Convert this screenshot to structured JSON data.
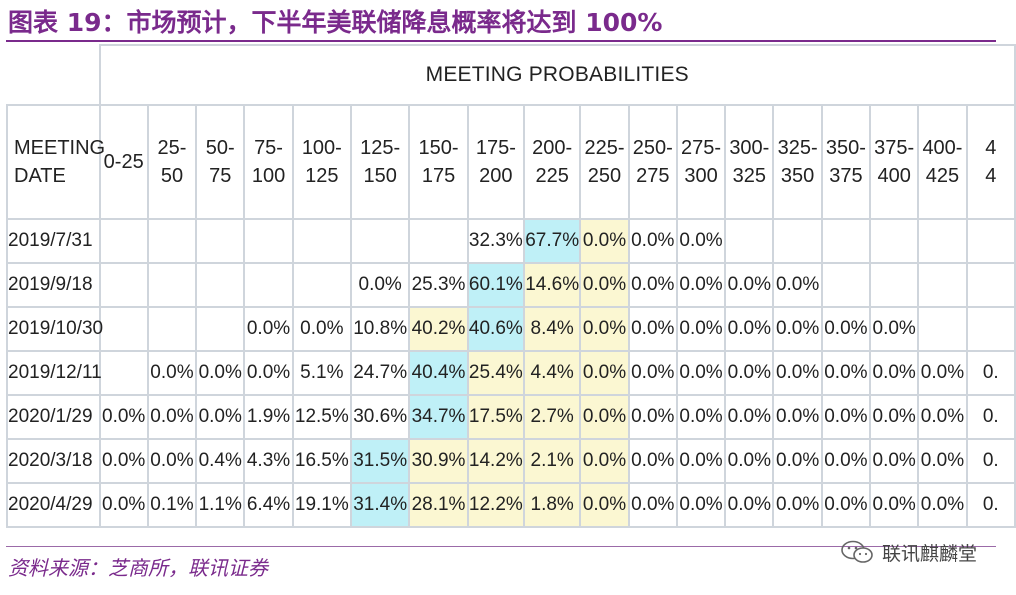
{
  "figure": {
    "title": "图表 19：市场预计，下半年美联储降息概率将达到 100%",
    "source": "资料来源：芝商所，联讯证券",
    "watermark": "联讯麒麟堂"
  },
  "table": {
    "group_header": "MEETING PROBABILITIES",
    "date_header_line1": "MEETING",
    "date_header_line2": "DATE",
    "columns": [
      {
        "l1": "0-25",
        "l2": ""
      },
      {
        "l1": "25-",
        "l2": "50"
      },
      {
        "l1": "50-",
        "l2": "75"
      },
      {
        "l1": "75-",
        "l2": "100"
      },
      {
        "l1": "100-",
        "l2": "125"
      },
      {
        "l1": "125-",
        "l2": "150"
      },
      {
        "l1": "150-",
        "l2": "175"
      },
      {
        "l1": "175-",
        "l2": "200"
      },
      {
        "l1": "200-",
        "l2": "225"
      },
      {
        "l1": "225-",
        "l2": "250"
      },
      {
        "l1": "250-",
        "l2": "275"
      },
      {
        "l1": "275-",
        "l2": "300"
      },
      {
        "l1": "300-",
        "l2": "325"
      },
      {
        "l1": "325-",
        "l2": "350"
      },
      {
        "l1": "350-",
        "l2": "375"
      },
      {
        "l1": "375-",
        "l2": "400"
      },
      {
        "l1": "400-",
        "l2": "425"
      },
      {
        "l1": "4",
        "l2": "4"
      }
    ],
    "rows": [
      {
        "date": "2019/7/31",
        "values": [
          "",
          "",
          "",
          "",
          "",
          "",
          "",
          "32.3%",
          "67.7%",
          "0.0%",
          "0.0%",
          "0.0%",
          "",
          "",
          "",
          "",
          "",
          ""
        ],
        "highlight": [
          "",
          "",
          "",
          "",
          "",
          "",
          "",
          "",
          "hi",
          "mid",
          "",
          "",
          "",
          "",
          "",
          "",
          "",
          ""
        ]
      },
      {
        "date": "2019/9/18",
        "values": [
          "",
          "",
          "",
          "",
          "",
          "0.0%",
          "25.3%",
          "60.1%",
          "14.6%",
          "0.0%",
          "0.0%",
          "0.0%",
          "0.0%",
          "0.0%",
          "",
          "",
          "",
          ""
        ],
        "highlight": [
          "",
          "",
          "",
          "",
          "",
          "",
          "",
          "hi",
          "mid",
          "mid",
          "",
          "",
          "",
          "",
          "",
          "",
          "",
          ""
        ]
      },
      {
        "date": "2019/10/30",
        "values": [
          "",
          "",
          "",
          "0.0%",
          "0.0%",
          "10.8%",
          "40.2%",
          "40.6%",
          "8.4%",
          "0.0%",
          "0.0%",
          "0.0%",
          "0.0%",
          "0.0%",
          "0.0%",
          "0.0%",
          "",
          ""
        ],
        "highlight": [
          "",
          "",
          "",
          "",
          "",
          "",
          "mid",
          "hi",
          "mid",
          "mid",
          "",
          "",
          "",
          "",
          "",
          "",
          "",
          ""
        ]
      },
      {
        "date": "2019/12/11",
        "values": [
          "",
          "0.0%",
          "0.0%",
          "0.0%",
          "5.1%",
          "24.7%",
          "40.4%",
          "25.4%",
          "4.4%",
          "0.0%",
          "0.0%",
          "0.0%",
          "0.0%",
          "0.0%",
          "0.0%",
          "0.0%",
          "0.0%",
          "0."
        ],
        "highlight": [
          "",
          "",
          "",
          "",
          "",
          "",
          "hi",
          "mid",
          "mid",
          "mid",
          "",
          "",
          "",
          "",
          "",
          "",
          "",
          ""
        ]
      },
      {
        "date": "2020/1/29",
        "values": [
          "0.0%",
          "0.0%",
          "0.0%",
          "1.9%",
          "12.5%",
          "30.6%",
          "34.7%",
          "17.5%",
          "2.7%",
          "0.0%",
          "0.0%",
          "0.0%",
          "0.0%",
          "0.0%",
          "0.0%",
          "0.0%",
          "0.0%",
          "0."
        ],
        "highlight": [
          "",
          "",
          "",
          "",
          "",
          "",
          "hi",
          "mid",
          "mid",
          "mid",
          "",
          "",
          "",
          "",
          "",
          "",
          "",
          ""
        ]
      },
      {
        "date": "2020/3/18",
        "values": [
          "0.0%",
          "0.0%",
          "0.4%",
          "4.3%",
          "16.5%",
          "31.5%",
          "30.9%",
          "14.2%",
          "2.1%",
          "0.0%",
          "0.0%",
          "0.0%",
          "0.0%",
          "0.0%",
          "0.0%",
          "0.0%",
          "0.0%",
          "0."
        ],
        "highlight": [
          "",
          "",
          "",
          "",
          "",
          "hi",
          "mid",
          "mid",
          "mid",
          "mid",
          "",
          "",
          "",
          "",
          "",
          "",
          "",
          ""
        ]
      },
      {
        "date": "2020/4/29",
        "values": [
          "0.0%",
          "0.1%",
          "1.1%",
          "6.4%",
          "19.1%",
          "31.4%",
          "28.1%",
          "12.2%",
          "1.8%",
          "0.0%",
          "0.0%",
          "0.0%",
          "0.0%",
          "0.0%",
          "0.0%",
          "0.0%",
          "0.0%",
          "0."
        ],
        "highlight": [
          "",
          "",
          "",
          "",
          "",
          "hi",
          "mid",
          "mid",
          "mid",
          "mid",
          "",
          "",
          "",
          "",
          "",
          "",
          "",
          ""
        ]
      }
    ]
  },
  "colors": {
    "title": "#7a2a8c",
    "highlight_max": "#bff0f7",
    "highlight_mid": "#fbf7d2",
    "grid": "#cfd5dc"
  },
  "icons": {
    "watermark_icon": "wechat-icon"
  }
}
